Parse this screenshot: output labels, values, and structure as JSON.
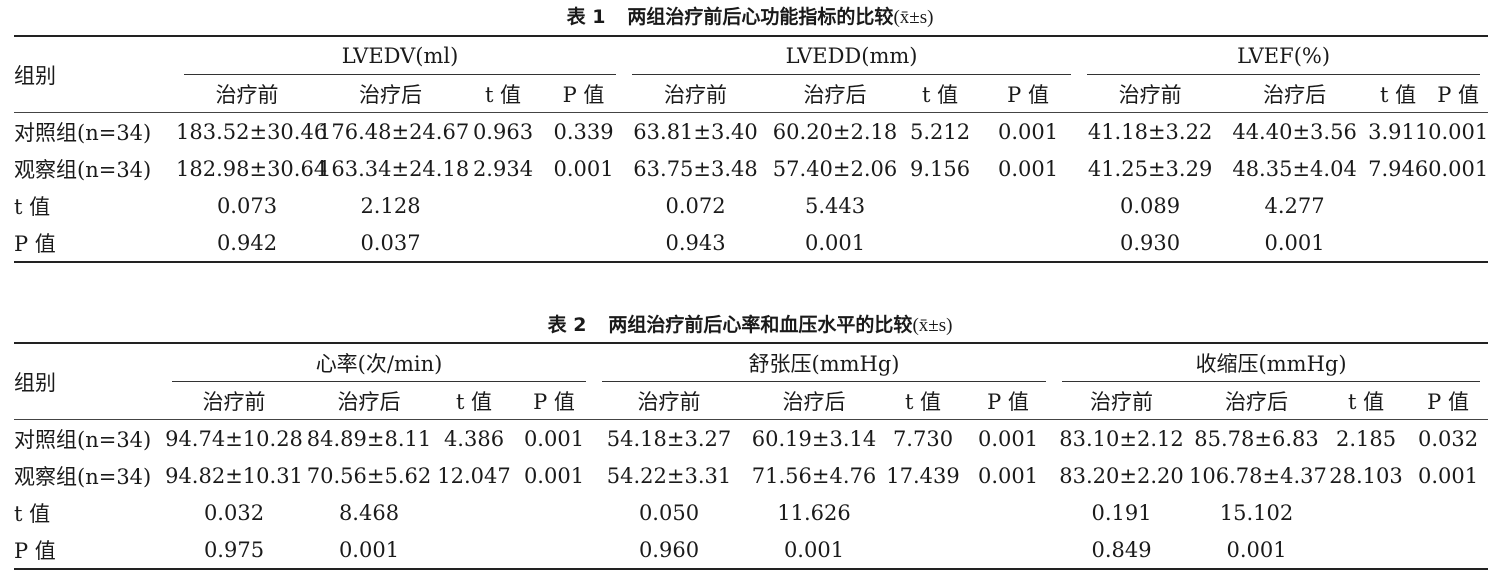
{
  "table1": {
    "caption_num": "表 1",
    "caption_title": "两组治疗前后心功能指标的比较",
    "caption_stat": "x̄±s",
    "group_label": "组别",
    "groups": [
      "LVEDV(ml)",
      "LVEDD(mm)",
      "LVEF(%)"
    ],
    "subheaders": [
      "治疗前",
      "治疗后",
      "t 值",
      "P 值"
    ],
    "rows": [
      {
        "label": "对照组(n=34)",
        "cells": [
          "183.52±30.46",
          "176.48±24.67",
          "0.963",
          "0.339",
          "63.81±3.40",
          "60.20±2.18",
          "5.212",
          "0.001",
          "41.18±3.22",
          "44.40±3.56",
          "3.911",
          "0.001"
        ]
      },
      {
        "label": "观察组(n=34)",
        "cells": [
          "182.98±30.64",
          "163.34±24.18",
          "2.934",
          "0.001",
          "63.75±3.48",
          "57.40±2.06",
          "9.156",
          "0.001",
          "41.25±3.29",
          "48.35±4.04",
          "7.946",
          "0.001"
        ]
      },
      {
        "label": "t 值",
        "cells": [
          "0.073",
          "2.128",
          "",
          "",
          "0.072",
          "5.443",
          "",
          "",
          "0.089",
          "4.277",
          "",
          ""
        ]
      },
      {
        "label": "P 值",
        "cells": [
          "0.942",
          "0.037",
          "",
          "",
          "0.943",
          "0.001",
          "",
          "",
          "0.930",
          "0.001",
          "",
          ""
        ]
      }
    ]
  },
  "table2": {
    "caption_num": "表 2",
    "caption_title": "两组治疗前后心率和血压水平的比较",
    "caption_stat": "x̄±s",
    "group_label": "组别",
    "groups": [
      "心率(次/min)",
      "舒张压(mmHg)",
      "收缩压(mmHg)"
    ],
    "subheaders": [
      "治疗前",
      "治疗后",
      "t 值",
      "P 值"
    ],
    "rows": [
      {
        "label": "对照组(n=34)",
        "cells": [
          "94.74±10.28",
          "84.89±8.11",
          "4.386",
          "0.001",
          "54.18±3.27",
          "60.19±3.14",
          "7.730",
          "0.001",
          "83.10±2.12",
          "85.78±6.83",
          "2.185",
          "0.032"
        ]
      },
      {
        "label": "观察组(n=34)",
        "cells": [
          "94.82±10.31",
          "70.56±5.62",
          "12.047",
          "0.001",
          "54.22±3.31",
          "71.56±4.76",
          "17.439",
          "0.001",
          "83.20±2.20",
          "106.78±4.37",
          "28.103",
          "0.001"
        ]
      },
      {
        "label": "t 值",
        "cells": [
          "0.032",
          "8.468",
          "",
          "",
          "0.050",
          "11.626",
          "",
          "",
          "0.191",
          "15.102",
          "",
          ""
        ]
      },
      {
        "label": "P 值",
        "cells": [
          "0.975",
          "0.001",
          "",
          "",
          "0.960",
          "0.001",
          "",
          "",
          "0.849",
          "0.001",
          "",
          ""
        ]
      }
    ]
  }
}
